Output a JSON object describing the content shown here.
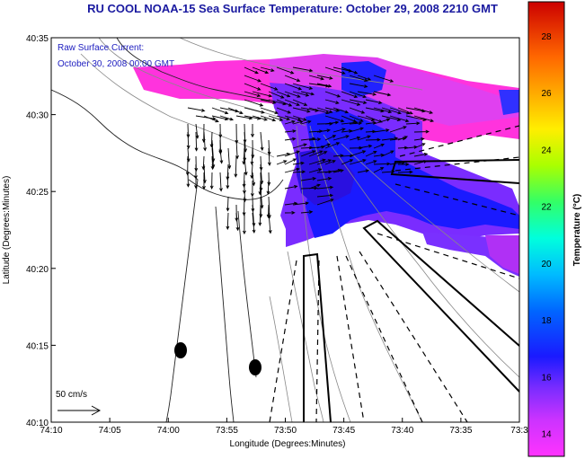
{
  "title": "RU COOL  NOAA-15  Sea Surface Temperature:  October 29, 2008 2210 GMT",
  "legend": {
    "current_label": "Raw Surface Current:",
    "current_date": "October 30, 2008 00:00 GMT",
    "scale_label": "50 cm/s"
  },
  "axes": {
    "xlabel": "Longitude (Degrees:Minutes)",
    "ylabel": "Latitude (Degrees:Minutes)",
    "x_ticks": [
      "74:10",
      "74:05",
      "74:00",
      "73:55",
      "73:50",
      "73:45",
      "73:40",
      "73:35",
      "73:3"
    ],
    "y_ticks": [
      "40:35",
      "40:30",
      "40:25",
      "40:20",
      "40:15",
      "40:10"
    ]
  },
  "colorbar": {
    "label": "Temperature (°C)",
    "ticks": [
      "28",
      "26",
      "24",
      "22",
      "20",
      "18",
      "16",
      "14"
    ],
    "min": 13.2,
    "max": 29.2
  },
  "colors": {
    "title": "#1a1aa0",
    "legend_text": "#2020c0",
    "sst_warm": "#ff33cc",
    "sst_mid": "#9933ff",
    "sst_cool": "#1a1aff"
  }
}
